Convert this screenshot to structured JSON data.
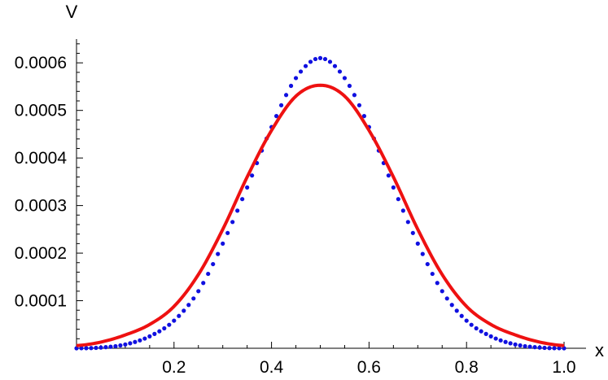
{
  "chart_data": {
    "type": "line",
    "title": "",
    "xlabel": "x",
    "ylabel": "V",
    "xlim": [
      0,
      1.0
    ],
    "ylim": [
      0,
      0.00065
    ],
    "x_ticks": [
      0.2,
      0.4,
      0.6,
      0.8,
      1.0
    ],
    "x_tick_labels": [
      "0.2",
      "0.4",
      "0.6",
      "0.8",
      "1.0"
    ],
    "y_ticks": [
      0.0001,
      0.0002,
      0.0003,
      0.0004,
      0.0005,
      0.0006
    ],
    "y_tick_labels": [
      "0.0001",
      "0.0002",
      "0.0003",
      "0.0004",
      "0.0005",
      "0.0006"
    ],
    "grid": false,
    "legend": "none",
    "series": [
      {
        "style": "dotted-points",
        "color": "#1010e0",
        "x": [
          0.0,
          0.05,
          0.1,
          0.15,
          0.2,
          0.25,
          0.3,
          0.35,
          0.4,
          0.45,
          0.5,
          0.55,
          0.6,
          0.65,
          0.7,
          0.75,
          0.8,
          0.85,
          0.9,
          0.95,
          1.0
        ],
        "values": [
          0.0,
          1.5e-06,
          8e-06,
          2.5e-05,
          5.8e-05,
          0.00012,
          0.00022,
          0.000338,
          0.000465,
          0.000568,
          0.00061,
          0.000568,
          0.000465,
          0.000338,
          0.00022,
          0.00012,
          5.8e-05,
          2.5e-05,
          8e-06,
          1.5e-06,
          0.0
        ]
      },
      {
        "style": "solid-line",
        "color": "#ee1111",
        "x": [
          0.0,
          0.05,
          0.1,
          0.15,
          0.2,
          0.25,
          0.3,
          0.35,
          0.4,
          0.45,
          0.5,
          0.55,
          0.6,
          0.65,
          0.7,
          0.75,
          0.8,
          0.85,
          0.9,
          0.95,
          1.0
        ],
        "values": [
          5.5e-06,
          1.3e-05,
          2.8e-05,
          5e-05,
          8.8e-05,
          0.000155,
          0.00025,
          0.00036,
          0.000458,
          0.00053,
          0.000553,
          0.00053,
          0.000458,
          0.00036,
          0.00025,
          0.000155,
          8.8e-05,
          5e-05,
          2.8e-05,
          1.3e-05,
          5.5e-06
        ]
      }
    ]
  }
}
